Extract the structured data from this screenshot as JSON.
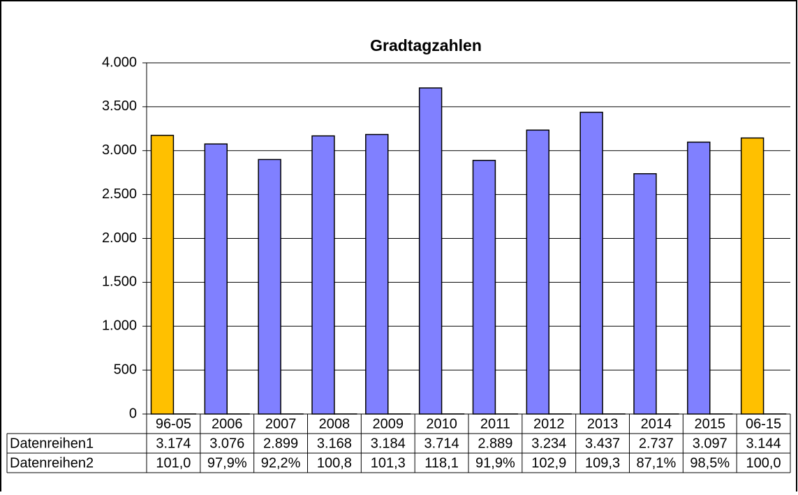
{
  "chart_data": {
    "type": "bar",
    "title": "Gradtagzahlen",
    "categories": [
      "96-05",
      "2006",
      "2007",
      "2008",
      "2009",
      "2010",
      "2011",
      "2012",
      "2013",
      "2014",
      "2015",
      "06-15"
    ],
    "series": [
      {
        "name": "Datenreihen1",
        "color": "#8080ff",
        "colors": [
          "#ffc000",
          "#8080ff",
          "#8080ff",
          "#8080ff",
          "#8080ff",
          "#8080ff",
          "#8080ff",
          "#8080ff",
          "#8080ff",
          "#8080ff",
          "#8080ff",
          "#ffc000"
        ],
        "values": [
          3174,
          3076,
          2899,
          3168,
          3184,
          3714,
          2889,
          3234,
          3437,
          2737,
          3097,
          3144
        ],
        "value_labels": [
          "3.174",
          "3.076",
          "2.899",
          "3.168",
          "3.184",
          "3.714",
          "2.889",
          "3.234",
          "3.437",
          "2.737",
          "3.097",
          "3.144"
        ]
      },
      {
        "name": "Datenreihen2",
        "color": "#333333",
        "values": [
          1.01,
          0.979,
          0.922,
          1.008,
          1.013,
          1.181,
          0.919,
          1.029,
          1.093,
          0.871,
          0.985,
          1.0
        ],
        "value_labels": [
          "101,0",
          "97,9%",
          "92,2%",
          "100,8",
          "101,3",
          "118,1",
          "91,9%",
          "102,9",
          "109,3",
          "87,1%",
          "98,5%",
          "100,0"
        ]
      }
    ],
    "ylim": [
      0,
      4000
    ],
    "yticks": [
      0,
      500,
      {
        "value": 1000,
        "label": "1.000"
      },
      {
        "value": 1500,
        "label": "1.500"
      },
      {
        "value": 2000,
        "label": "2.000"
      },
      {
        "value": 2500,
        "label": "2.500"
      },
      {
        "value": 3000,
        "label": "3.000"
      },
      {
        "value": 3500,
        "label": "3.500"
      },
      {
        "value": 4000,
        "label": "4.000"
      }
    ],
    "grid": true
  }
}
